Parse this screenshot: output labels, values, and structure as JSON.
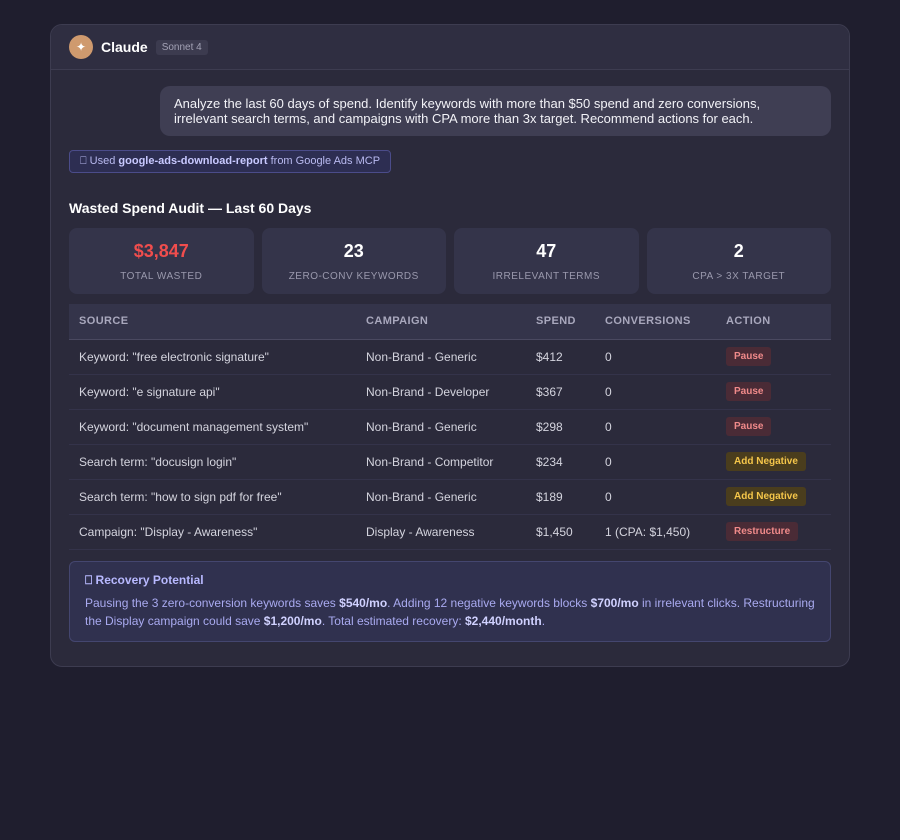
{
  "app": {
    "name": "Claude",
    "model": "Sonnet 4",
    "avatar_glyph": "✦"
  },
  "user_message": "Analyze the last 60 days of spend. Identify keywords with more than $50 spend and zero conversions, irrelevant search terms, and campaigns with CPA more than 3x target. Recommend actions for each.",
  "tool_use": {
    "icon": "tool-icon",
    "prefix": "Used",
    "tool_name": "google-ads-download-report",
    "suffix": "from Google Ads MCP"
  },
  "report": {
    "title": "Wasted Spend Audit — Last 60 Days",
    "stats": [
      {
        "value": "$3,847",
        "label": "TOTAL WASTED",
        "color": "#f04d4d"
      },
      {
        "value": "23",
        "label": "ZERO-CONV KEYWORDS"
      },
      {
        "value": "47",
        "label": "IRRELEVANT TERMS"
      },
      {
        "value": "2",
        "label": "CPA > 3X TARGET"
      }
    ],
    "table": {
      "headers": [
        "SOURCE",
        "CAMPAIGN",
        "SPEND",
        "CONVERSIONS",
        "ACTION"
      ],
      "rows": [
        {
          "source": "Keyword: \"free electronic signature\"",
          "campaign": "Non-Brand - Generic",
          "spend": "$412",
          "conversions": "0",
          "action": "Pause"
        },
        {
          "source": "Keyword: \"e signature api\"",
          "campaign": "Non-Brand - Developer",
          "spend": "$367",
          "conversions": "0",
          "action": "Pause"
        },
        {
          "source": "Keyword: \"document management system\"",
          "campaign": "Non-Brand - Generic",
          "spend": "$298",
          "conversions": "0",
          "action": "Pause"
        },
        {
          "source": "Search term: \"docusign login\"",
          "campaign": "Non-Brand - Competitor",
          "spend": "$234",
          "conversions": "0",
          "action": "Add Negative"
        },
        {
          "source": "Search term: \"how to sign pdf for free\"",
          "campaign": "Non-Brand - Generic",
          "spend": "$189",
          "conversions": "0",
          "action": "Add Negative"
        },
        {
          "source": "Campaign: \"Display - Awareness\"",
          "campaign": "Display - Awareness",
          "spend": "$1,450",
          "conversions": "1 (CPA: $1,450)",
          "action": "Restructure"
        }
      ]
    },
    "recovery": {
      "icon": "lightbulb-icon",
      "title": "Recovery Potential",
      "t1": "Pausing the 3 zero-conversion keywords saves ",
      "b1": "$540/mo",
      "t2": ". Adding 12 negative keywords blocks ",
      "b2": "$700/mo",
      "t3": " in irrelevant clicks. Restructuring the Display campaign could save ",
      "b3": "$1,200/mo",
      "t4": ". Total estimated recovery: ",
      "b4": "$2,440/month",
      "t5": "."
    }
  }
}
